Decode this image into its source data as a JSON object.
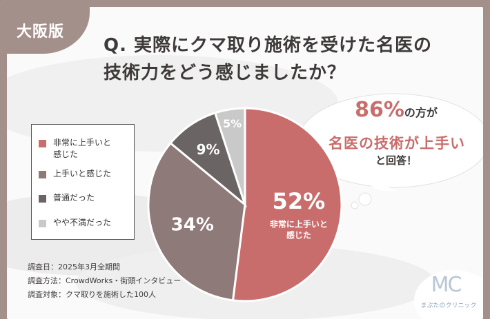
{
  "region": "大阪版",
  "title_line1": "Q. 実際にクマ取り施術を受けた名医の",
  "title_line2": "技術力をどう感じましたか？",
  "chart_data": {
    "type": "pie",
    "categories": [
      "非常に上手いと感じた",
      "上手いと感じた",
      "普通だった",
      "やや不満だった"
    ],
    "values": [
      52,
      34,
      9,
      5
    ],
    "colors": [
      "#c96d6c",
      "#8e7a78",
      "#6b6464",
      "#c9c9c9"
    ],
    "slice_labels": [
      "52%",
      "34%",
      "9%",
      "5%"
    ],
    "largest_slice_caption": "非常に上手いと\n感じた",
    "legend_position": "left"
  },
  "legend": [
    {
      "label": "非常に上手いと\n感じた",
      "color": "#c96d6c"
    },
    {
      "label": "上手いと感じた",
      "color": "#8e7a78"
    },
    {
      "label": "普通だった",
      "color": "#6b6464"
    },
    {
      "label": "やや不満だった",
      "color": "#c9c9c9"
    }
  ],
  "bubble": {
    "pct": "86%",
    "line1_rest": "の方が",
    "line2": "名医の技術が上手い",
    "line3": "と回答！"
  },
  "survey": {
    "date": "調査日：2025年3月全期間",
    "method": "調査方法：CrowdWorks・街頭インタビュー",
    "target": "調査対象：クマ取りを施術した100人"
  },
  "logo": {
    "mark": "MC",
    "name": "まぶたのクリニック"
  }
}
